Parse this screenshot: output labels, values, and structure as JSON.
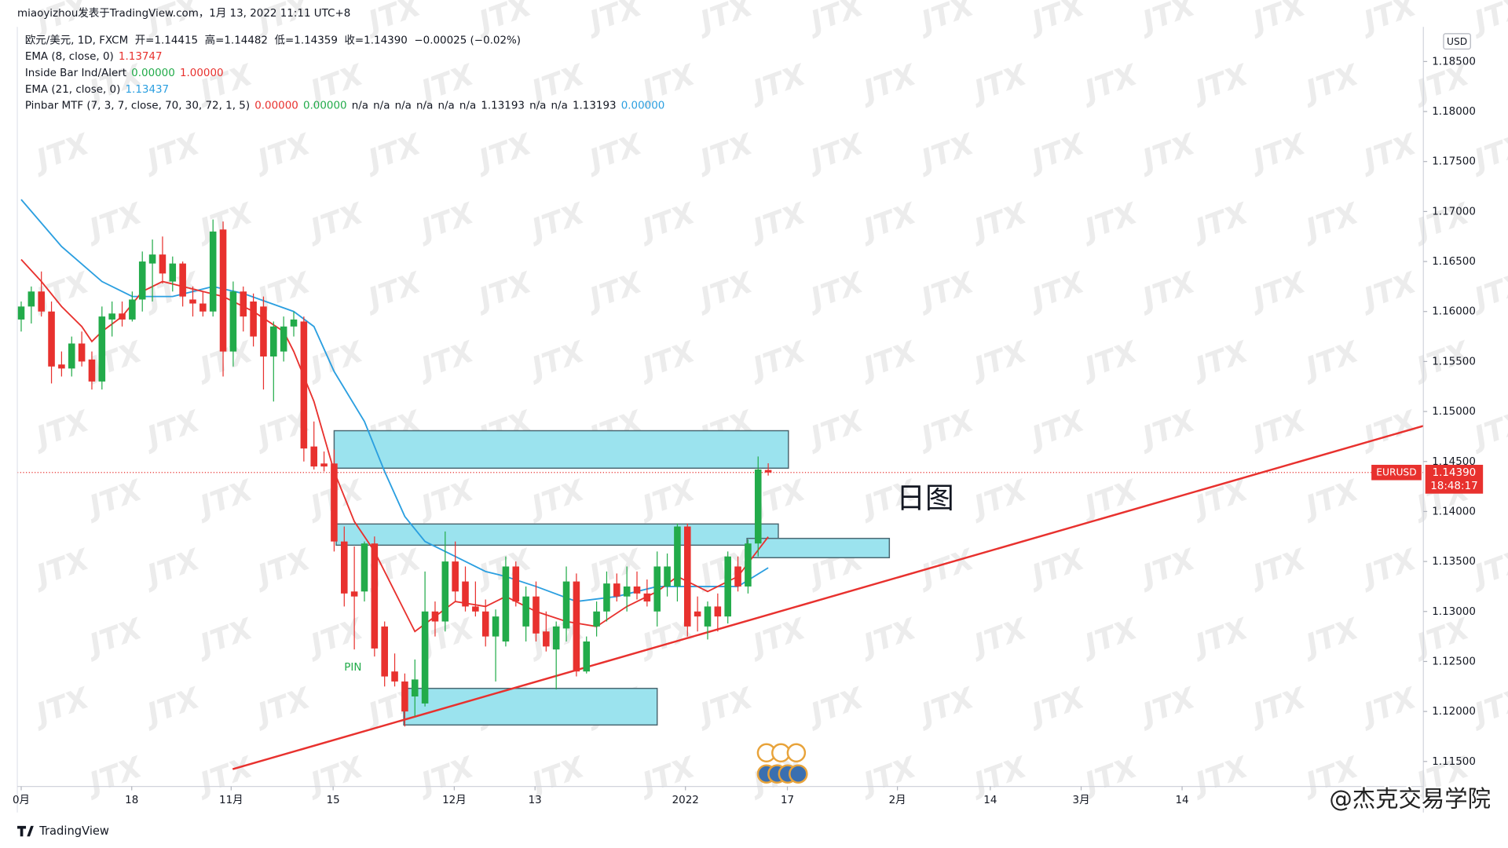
{
  "chart_data": {
    "type": "candlestick",
    "source": "miaoyizhou发表于TradingView.com，1月 13, 2022 11:11 UTC+8",
    "legend": [
      {
        "label": "欧元/美元, 1D, FXCM  开=1.14415  高=1.14482  低=1.14359  收=1.14390  −0.00025 (−0.02%)",
        "values": []
      },
      {
        "label": "EMA (8, close, 0)",
        "values": [
          {
            "text": "1.13747",
            "color": "#e8312e"
          }
        ]
      },
      {
        "label": "Inside Bar Ind/Alert",
        "values": [
          {
            "text": "0.00000",
            "color": "#22ab4a"
          },
          {
            "text": "1.00000",
            "color": "#e8312e"
          }
        ]
      },
      {
        "label": "EMA (21, close, 0)",
        "values": [
          {
            "text": "1.13437",
            "color": "#2b9fe0"
          }
        ]
      },
      {
        "label": "Pinbar MTF (7, 3, 7, close, 70, 30, 72, 1, 5)",
        "values": [
          {
            "text": "0.00000",
            "color": "#e8312e"
          },
          {
            "text": "0.00000",
            "color": "#22ab4a"
          },
          {
            "text": "n/a",
            "color": "#131722"
          },
          {
            "text": "n/a",
            "color": "#131722"
          },
          {
            "text": "n/a",
            "color": "#131722"
          },
          {
            "text": "n/a",
            "color": "#131722"
          },
          {
            "text": "n/a",
            "color": "#131722"
          },
          {
            "text": "n/a",
            "color": "#131722"
          },
          {
            "text": "1.13193",
            "color": "#131722"
          },
          {
            "text": "n/a",
            "color": "#131722"
          },
          {
            "text": "n/a",
            "color": "#131722"
          },
          {
            "text": "1.13193",
            "color": "#131722"
          },
          {
            "text": "0.00000",
            "color": "#2b9fe0"
          }
        ]
      }
    ],
    "up_color": "#22ab4a",
    "down_color": "#e8312e",
    "open": [
      1.1592,
      1.1605,
      1.162,
      1.16,
      1.1547,
      1.1543,
      1.1568,
      1.1552,
      1.153,
      1.1592,
      1.1598,
      1.1592,
      1.1612,
      1.1648,
      1.1657,
      1.163,
      1.1648,
      1.1612,
      1.1608,
      1.16,
      1.1682,
      1.156,
      1.162,
      1.161,
      1.1605,
      1.1555,
      1.156,
      1.1585,
      1.159,
      1.1465,
      1.1448,
      1.1448,
      1.137,
      1.132,
      1.132,
      1.1368,
      1.1285,
      1.124,
      1.123,
      1.1215,
      1.1208,
      1.13,
      1.129,
      1.135,
      1.133,
      1.1305,
      1.13,
      1.1275,
      1.127,
      1.1345,
      1.1285,
      1.1315,
      1.128,
      1.1262,
      1.1283,
      1.133,
      1.124,
      1.1285,
      1.13,
      1.1328,
      1.1315,
      1.1325,
      1.1318,
      1.13,
      1.1325,
      1.1325,
      1.1385,
      1.13,
      1.1285,
      1.1305,
      1.1295,
      1.1345,
      1.1325,
      1.1368,
      1.14415
    ],
    "high": [
      1.161,
      1.1625,
      1.164,
      1.161,
      1.156,
      1.1575,
      1.158,
      1.156,
      1.1605,
      1.161,
      1.161,
      1.162,
      1.166,
      1.1672,
      1.1675,
      1.1655,
      1.165,
      1.1625,
      1.162,
      1.1692,
      1.169,
      1.163,
      1.1625,
      1.1618,
      1.1615,
      1.159,
      1.1595,
      1.16,
      1.1595,
      1.149,
      1.146,
      1.1462,
      1.1385,
      1.1365,
      1.137,
      1.1375,
      1.129,
      1.1258,
      1.1238,
      1.1252,
      1.134,
      1.131,
      1.138,
      1.137,
      1.1345,
      1.133,
      1.1312,
      1.1302,
      1.1355,
      1.135,
      1.1325,
      1.133,
      1.13,
      1.129,
      1.1345,
      1.1338,
      1.1275,
      1.131,
      1.134,
      1.1338,
      1.1345,
      1.134,
      1.1332,
      1.136,
      1.1358,
      1.1388,
      1.1388,
      1.1315,
      1.131,
      1.1318,
      1.136,
      1.1355,
      1.1372,
      1.1455,
      1.14482
    ],
    "low": [
      1.158,
      1.1588,
      1.1595,
      1.1528,
      1.1535,
      1.1535,
      1.1545,
      1.1522,
      1.1522,
      1.1575,
      1.1585,
      1.159,
      1.16,
      1.161,
      1.1628,
      1.162,
      1.1605,
      1.1595,
      1.1595,
      1.1595,
      1.1535,
      1.1545,
      1.158,
      1.1565,
      1.1522,
      1.151,
      1.155,
      1.1575,
      1.145,
      1.1442,
      1.144,
      1.136,
      1.1305,
      1.1262,
      1.131,
      1.1255,
      1.1225,
      1.1225,
      1.1185,
      1.1195,
      1.1205,
      1.1275,
      1.128,
      1.131,
      1.13,
      1.1295,
      1.1265,
      1.123,
      1.1265,
      1.1305,
      1.127,
      1.127,
      1.126,
      1.1222,
      1.127,
      1.1235,
      1.1238,
      1.1275,
      1.129,
      1.131,
      1.13,
      1.1312,
      1.1305,
      1.1285,
      1.1315,
      1.131,
      1.1275,
      1.128,
      1.1272,
      1.128,
      1.1288,
      1.132,
      1.1318,
      1.1355,
      1.14359
    ],
    "close": [
      1.1605,
      1.162,
      1.16,
      1.1545,
      1.1543,
      1.1568,
      1.155,
      1.153,
      1.1595,
      1.1598,
      1.1592,
      1.1612,
      1.165,
      1.1657,
      1.1638,
      1.1648,
      1.1615,
      1.1608,
      1.16,
      1.168,
      1.156,
      1.162,
      1.1595,
      1.1575,
      1.1555,
      1.1585,
      1.1585,
      1.1592,
      1.1463,
      1.1445,
      1.1445,
      1.137,
      1.1318,
      1.1315,
      1.1368,
      1.1263,
      1.1235,
      1.123,
      1.12,
      1.1232,
      1.13,
      1.129,
      1.135,
      1.132,
      1.1305,
      1.13,
      1.1275,
      1.1295,
      1.1345,
      1.131,
      1.1315,
      1.1278,
      1.1265,
      1.1285,
      1.133,
      1.124,
      1.127,
      1.13,
      1.1328,
      1.1315,
      1.1325,
      1.1318,
      1.131,
      1.1345,
      1.1345,
      1.1385,
      1.1285,
      1.1295,
      1.1305,
      1.1295,
      1.1355,
      1.1325,
      1.1368,
      1.1442,
      1.1439
    ],
    "lines": [
      {
        "name": "EMA (21, close, 0)",
        "color": "#2b9fe0",
        "x": [
          0,
          4,
          8,
          11,
          15,
          19,
          22,
          27,
          29,
          31,
          34,
          36,
          38,
          40,
          43,
          46,
          48,
          51,
          55,
          59,
          63,
          67,
          71,
          74
        ],
        "values": [
          1.1712,
          1.1665,
          1.163,
          1.1615,
          1.1615,
          1.1625,
          1.1618,
          1.16,
          1.1585,
          1.154,
          1.149,
          1.144,
          1.1395,
          1.137,
          1.1355,
          1.134,
          1.1335,
          1.1325,
          1.131,
          1.1315,
          1.1325,
          1.1325,
          1.1325,
          1.13437
        ]
      },
      {
        "name": "EMA (8, close, 0)",
        "color": "#e8312e",
        "x": [
          0,
          2,
          4,
          6,
          7,
          8,
          10,
          12,
          14,
          16,
          18,
          20,
          23,
          26,
          27,
          29,
          31,
          33,
          35,
          37,
          39,
          41,
          43,
          46,
          48,
          51,
          54,
          57,
          60,
          63,
          65,
          68,
          71,
          74
        ],
        "values": [
          1.1652,
          1.163,
          1.1605,
          1.1585,
          1.157,
          1.158,
          1.1595,
          1.162,
          1.163,
          1.1625,
          1.162,
          1.1615,
          1.16,
          1.158,
          1.156,
          1.151,
          1.144,
          1.139,
          1.136,
          1.132,
          1.128,
          1.1295,
          1.131,
          1.1305,
          1.1315,
          1.13,
          1.129,
          1.1285,
          1.1305,
          1.132,
          1.1335,
          1.132,
          1.1335,
          1.13747
        ]
      }
    ],
    "zones": [
      {
        "x_range": [
          31.0,
          76.0
        ],
        "y_range": [
          1.14433,
          1.14808
        ]
      },
      {
        "x_range": [
          31.2,
          75.0
        ],
        "y_range": [
          1.13663,
          1.13875
        ]
      },
      {
        "x_range": [
          71.9,
          86.0
        ],
        "y_range": [
          1.13538,
          1.13731
        ]
      },
      {
        "x_range": [
          37.9,
          63.0
        ],
        "y_range": [
          1.11865,
          1.12231
        ]
      }
    ],
    "zone_color": "#9be3ee",
    "trendline": {
      "x": [
        20.95,
        138.9
      ],
      "y": [
        1.11423,
        1.14856
      ],
      "color": "#e8312e"
    },
    "xlim": [
      -2.1,
      138.9
    ],
    "ylim": [
      1.1125,
      1.1885
    ],
    "xticks": [
      {
        "value": 0,
        "label": "0月"
      },
      {
        "value": 10.95,
        "label": "18"
      },
      {
        "value": 20.8,
        "label": "11月"
      },
      {
        "value": 30.9,
        "label": "15"
      },
      {
        "value": 42.9,
        "label": "12月"
      },
      {
        "value": 50.9,
        "label": "13"
      },
      {
        "value": 65.8,
        "label": "2022"
      },
      {
        "value": 75.9,
        "label": "17"
      },
      {
        "value": 86.8,
        "label": "2月"
      },
      {
        "value": 96.0,
        "label": "14"
      },
      {
        "value": 105.0,
        "label": "3月"
      },
      {
        "value": 115.0,
        "label": "14"
      }
    ],
    "yticks": [
      {
        "value": 1.115,
        "label": "1.11500"
      },
      {
        "value": 1.12,
        "label": "1.12000"
      },
      {
        "value": 1.125,
        "label": "1.12500"
      },
      {
        "value": 1.13,
        "label": "1.13000"
      },
      {
        "value": 1.135,
        "label": "1.13500"
      },
      {
        "value": 1.14,
        "label": "1.14000"
      },
      {
        "value": 1.145,
        "label": "1.14500"
      },
      {
        "value": 1.15,
        "label": "1.15000"
      },
      {
        "value": 1.155,
        "label": "1.15500"
      },
      {
        "value": 1.16,
        "label": "1.16000"
      },
      {
        "value": 1.165,
        "label": "1.16500"
      },
      {
        "value": 1.17,
        "label": "1.17000"
      },
      {
        "value": 1.175,
        "label": "1.17500"
      },
      {
        "value": 1.18,
        "label": "1.18000"
      },
      {
        "value": 1.185,
        "label": "1.18500"
      }
    ],
    "grid": false,
    "currency": "USD",
    "symbol": "EURUSD",
    "last_price": {
      "value": 1.1439,
      "label": "1.14390"
    },
    "countdown": "18:48:17",
    "annotation": "日图",
    "pin_label": "PIN",
    "watermark": "JTX",
    "brand": "TradingView",
    "credit": "@杰克交易学院"
  }
}
